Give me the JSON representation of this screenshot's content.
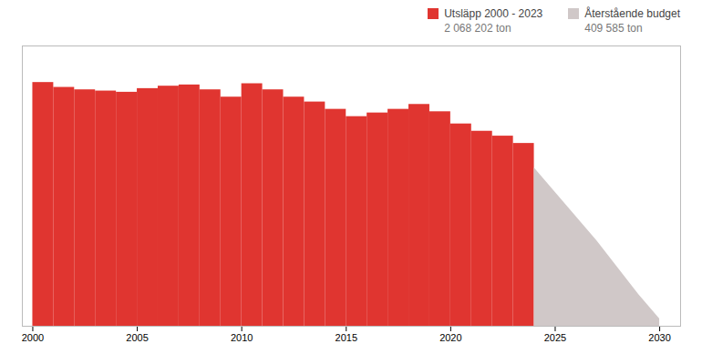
{
  "chart_data": {
    "type": "area",
    "series": [
      {
        "name": "Utsläpp 2000 - 2023",
        "type": "step",
        "color": "#e03530",
        "x": [
          2000,
          2001,
          2002,
          2003,
          2004,
          2005,
          2006,
          2007,
          2008,
          2009,
          2010,
          2011,
          2012,
          2013,
          2014,
          2015,
          2016,
          2017,
          2018,
          2019,
          2020,
          2021,
          2022,
          2023
        ],
        "values": [
          100000,
          98000,
          97000,
          96500,
          96000,
          97500,
          98500,
          99000,
          97000,
          94000,
          99500,
          97000,
          94000,
          92000,
          89000,
          86000,
          87500,
          89000,
          91000,
          88000,
          83000,
          80000,
          78000,
          75000
        ]
      },
      {
        "name": "Återstående budget",
        "type": "area",
        "color": "#d0c8c8",
        "x": [
          2024,
          2025,
          2026,
          2027,
          2028,
          2029,
          2030
        ],
        "values": [
          65000,
          55000,
          45000,
          35000,
          24000,
          13000,
          3000
        ]
      }
    ],
    "annotations": [
      "2 068 202 ton",
      "409 585 ton"
    ],
    "xlim": [
      1999.5,
      2031
    ],
    "xticks": [
      2000,
      2005,
      2010,
      2015,
      2020,
      2025,
      2030
    ],
    "ylim": [
      0,
      115000
    ],
    "tick_labels": "x",
    "legend": "top right"
  }
}
